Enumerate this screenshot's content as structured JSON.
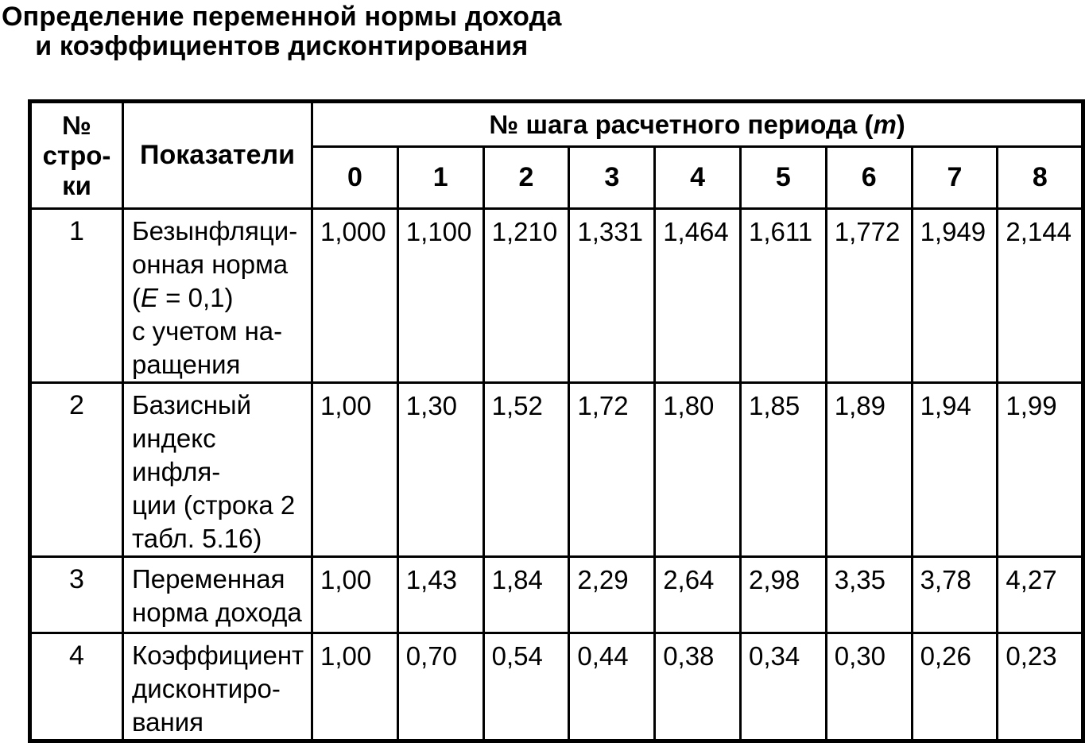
{
  "title": {
    "line1": "Определение переменной нормы дохода",
    "line2": "и коэффициентов дисконтирования"
  },
  "table": {
    "header": {
      "row_number": {
        "line1": "№",
        "line2": "стро-",
        "line3": "ки"
      },
      "indicators": "Показатели",
      "step_span": {
        "prefix": "№ шага расчетного периода (",
        "var": "m",
        "suffix": ")"
      },
      "steps": [
        "0",
        "1",
        "2",
        "3",
        "4",
        "5",
        "6",
        "7",
        "8"
      ]
    },
    "rows": [
      {
        "num": "1",
        "label": {
          "line1": "Безынфляци-",
          "line2": "онная норма",
          "line3_open": "(",
          "line3_var": "E",
          "line3_rest": " = 0,1)",
          "line4": "с учетом на-",
          "line5": "ращения"
        },
        "values": [
          "1,000",
          "1,100",
          "1,210",
          "1,331",
          "1,464",
          "1,611",
          "1,772",
          "1,949",
          "2,144"
        ]
      },
      {
        "num": "2",
        "label": {
          "line1": "Базисный",
          "line2": "индекс инфля-",
          "line3": "ции (строка 2",
          "line4": "табл. 5.16)"
        },
        "values": [
          "1,00",
          "1,30",
          "1,52",
          "1,72",
          "1,80",
          "1,85",
          "1,89",
          "1,94",
          "1,99"
        ]
      },
      {
        "num": "3",
        "label": {
          "line1": "Переменная",
          "line2": "норма дохода"
        },
        "values": [
          "1,00",
          "1,43",
          "1,84",
          "2,29",
          "2,64",
          "2,98",
          "3,35",
          "3,78",
          "4,27"
        ]
      },
      {
        "num": "4",
        "label": {
          "line1": "Коэффициент",
          "line2": "дисконтиро-",
          "line3": "вания"
        },
        "values": [
          "1,00",
          "0,70",
          "0,54",
          "0,44",
          "0,38",
          "0,34",
          "0,30",
          "0,26",
          "0,23"
        ]
      }
    ]
  }
}
